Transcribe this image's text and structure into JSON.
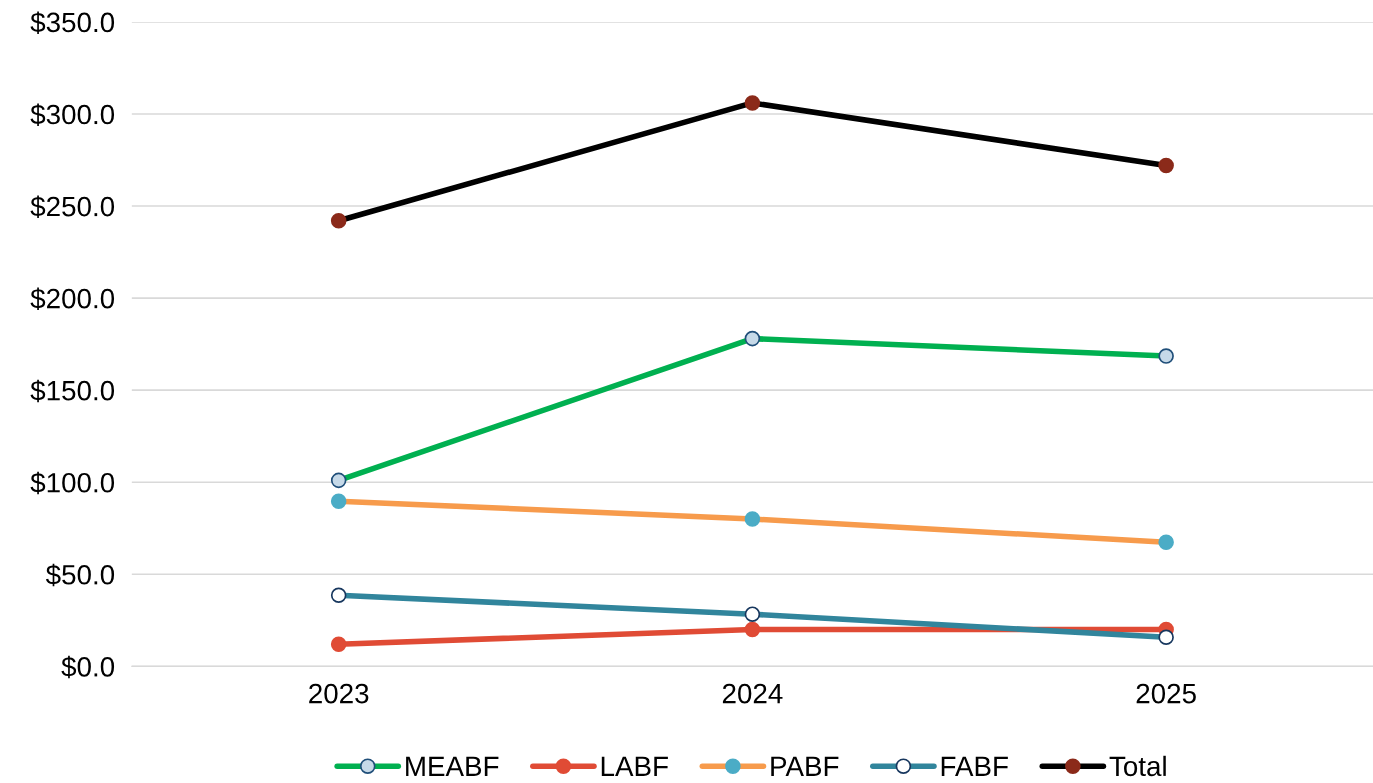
{
  "chart_data": {
    "type": "line",
    "categories": [
      "2023",
      "2024",
      "2025"
    ],
    "series": [
      {
        "name": "MEABF",
        "color": "#00b050",
        "values": [
          101,
          178,
          168.5
        ]
      },
      {
        "name": "LABF",
        "color": "#e04b35",
        "values": [
          12,
          20,
          20
        ]
      },
      {
        "name": "PABF",
        "color": "#f79b4c",
        "values": [
          89.7,
          80,
          67.4
        ]
      },
      {
        "name": "FABF",
        "color": "#31859c",
        "values": [
          38.6,
          28.3,
          15.8
        ]
      },
      {
        "name": "Total",
        "color": "#000000",
        "values": [
          242,
          306,
          272
        ]
      }
    ],
    "ylim": [
      0,
      350
    ],
    "yticks": [
      {
        "value": 0,
        "label": "$0.0"
      },
      {
        "value": 50,
        "label": "$50.0"
      },
      {
        "value": 100,
        "label": "$100.0"
      },
      {
        "value": 150,
        "label": "$150.0"
      },
      {
        "value": 200,
        "label": "$200.0"
      },
      {
        "value": 250,
        "label": "$250.0"
      },
      {
        "value": 300,
        "label": "$300.0"
      },
      {
        "value": 350,
        "label": "$350.0"
      }
    ],
    "grid": "y",
    "legend": "bottom",
    "marker": "circle",
    "line_style": "solid"
  }
}
